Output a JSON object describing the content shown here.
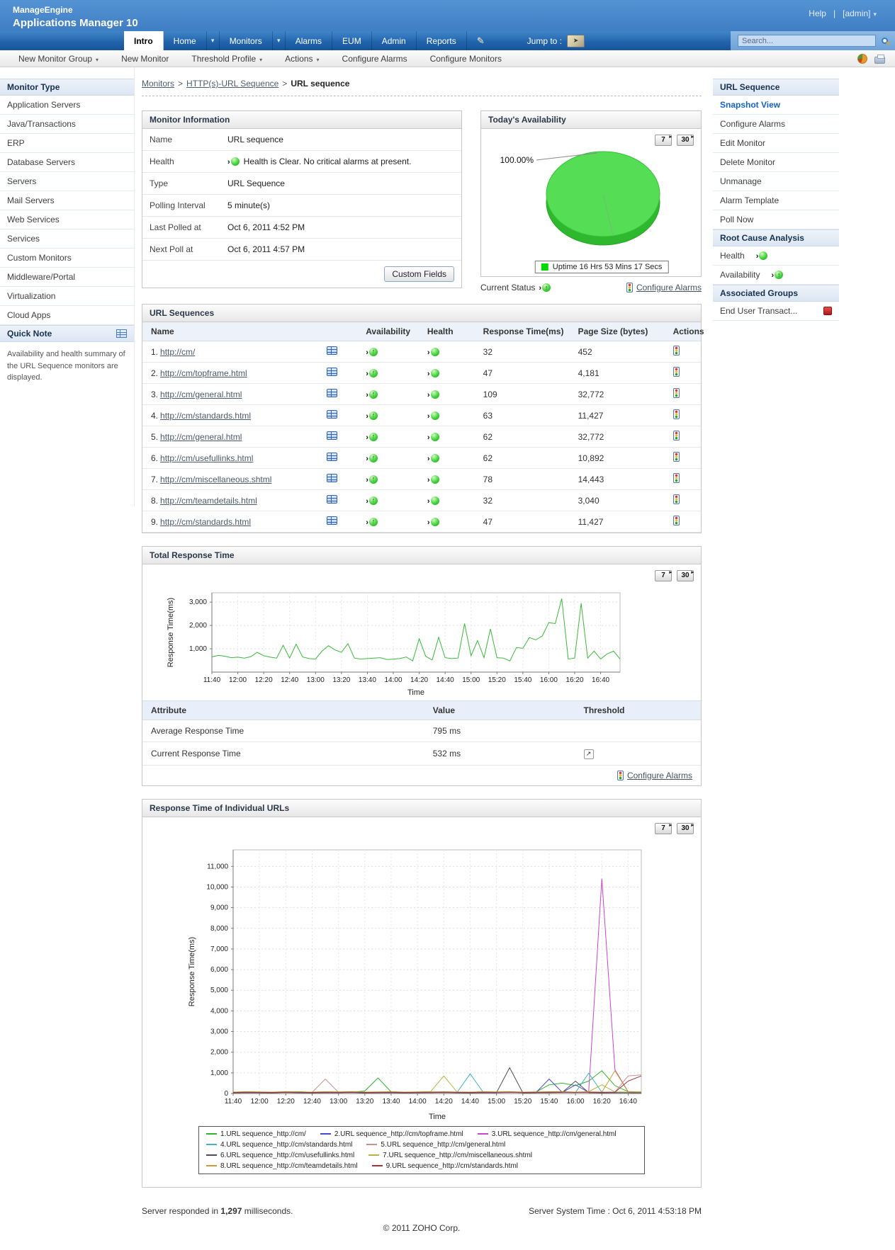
{
  "header": {
    "brand_line1": "ManageEngine",
    "brand_line2": "Applications Manager 10",
    "help_label": "Help",
    "divider": "|",
    "user_label": "[admin]"
  },
  "nav": {
    "tabs": [
      {
        "label": "Intro",
        "state": "active",
        "dropdown": false
      },
      {
        "label": "Home",
        "state": "",
        "dropdown": true
      },
      {
        "label": "Monitors",
        "state": "",
        "dropdown": true
      },
      {
        "label": "Alarms",
        "state": "",
        "dropdown": false
      },
      {
        "label": "EUM",
        "state": "",
        "dropdown": false
      },
      {
        "label": "Admin",
        "state": "",
        "dropdown": false
      },
      {
        "label": "Reports",
        "state": "",
        "dropdown": false
      }
    ],
    "jump_label": "Jump to :",
    "search_placeholder": "Search..."
  },
  "subnav": {
    "items": [
      {
        "label": "New Monitor Group",
        "dropdown": true
      },
      {
        "label": "New Monitor",
        "dropdown": false
      },
      {
        "label": "Threshold Profile",
        "dropdown": true
      },
      {
        "label": "Actions",
        "dropdown": true
      },
      {
        "label": "Configure Alarms",
        "dropdown": false
      },
      {
        "label": "Configure Monitors",
        "dropdown": false
      }
    ]
  },
  "sidebar": {
    "title": "Monitor Type",
    "items": [
      "Application Servers",
      "Java/Transactions",
      "ERP",
      "Database Servers",
      "Servers",
      "Mail Servers",
      "Web Services",
      "Services",
      "Custom Monitors",
      "Middleware/Portal",
      "Virtualization",
      "Cloud Apps"
    ],
    "quick_note_title": "Quick Note",
    "quick_note_text": "Availability and health summary of the URL Sequence monitors are displayed."
  },
  "breadcrumb": {
    "link1": "Monitors",
    "link2": "HTTP(s)-URL Sequence",
    "current": "URL sequence",
    "separator": ">"
  },
  "monitor_info": {
    "title": "Monitor Information",
    "rows": [
      {
        "label": "Name",
        "value": "URL sequence",
        "has_icon": false
      },
      {
        "label": "Health",
        "value": "Health is Clear. No critical alarms at present.",
        "has_icon": true
      },
      {
        "label": "Type",
        "value": "URL Sequence",
        "has_icon": false
      },
      {
        "label": "Polling Interval",
        "value": "5 minute(s)",
        "has_icon": false
      },
      {
        "label": "Last Polled at",
        "value": "Oct 6, 2011 4:52 PM",
        "has_icon": false
      },
      {
        "label": "Next Poll at",
        "value": "Oct 6, 2011 4:57 PM",
        "has_icon": false
      }
    ],
    "custom_fields_button": "Custom Fields"
  },
  "availability": {
    "title": "Today's Availability",
    "btn7": "7",
    "btn30": "30",
    "percent_label": "100.00%",
    "legend": "Uptime 16 Hrs 53 Mins 17 Secs",
    "current_status_label": "Current Status",
    "configure_alarms_label": "Configure Alarms",
    "pie_top_color": "#55dd55",
    "pie_side_color": "#2eb82e",
    "legend_swatch_color": "#00d800"
  },
  "url_sequences": {
    "title": "URL Sequences",
    "columns": {
      "name": "Name",
      "availability": "Availability",
      "health": "Health",
      "response_time": "Response Time(ms)",
      "page_size": "Page Size (bytes)",
      "actions": "Actions"
    },
    "rows": [
      {
        "num": "1.",
        "name": "http://cm/",
        "response_time": "32",
        "page_size": "452"
      },
      {
        "num": "2.",
        "name": "http://cm/topframe.html",
        "response_time": "47",
        "page_size": "4,181"
      },
      {
        "num": "3.",
        "name": "http://cm/general.html",
        "response_time": "109",
        "page_size": "32,772"
      },
      {
        "num": "4.",
        "name": "http://cm/standards.html",
        "response_time": "63",
        "page_size": "11,427"
      },
      {
        "num": "5.",
        "name": "http://cm/general.html",
        "response_time": "62",
        "page_size": "32,772"
      },
      {
        "num": "6.",
        "name": "http://cm/usefullinks.html",
        "response_time": "62",
        "page_size": "10,892"
      },
      {
        "num": "7.",
        "name": "http://cm/miscellaneous.shtml",
        "response_time": "78",
        "page_size": "14,443"
      },
      {
        "num": "8.",
        "name": "http://cm/teamdetails.html",
        "response_time": "32",
        "page_size": "3,040"
      },
      {
        "num": "9.",
        "name": "http://cm/standards.html",
        "response_time": "47",
        "page_size": "11,427"
      }
    ]
  },
  "total_response_time": {
    "title": "Total Response Time",
    "btn7": "7",
    "btn30": "30"
  },
  "attributes": {
    "columns": {
      "attribute": "Attribute",
      "value": "Value",
      "threshold": "Threshold"
    },
    "rows": [
      {
        "label": "Average Response Time",
        "value": "795 ms",
        "threshold_icon": false
      },
      {
        "label": "Current Response Time",
        "value": "532 ms",
        "threshold_icon": true
      }
    ],
    "configure_alarms_label": "Configure Alarms"
  },
  "individual_urls": {
    "title": "Response Time of Individual URLs",
    "btn7": "7",
    "btn30": "30"
  },
  "right_panel": {
    "section1_title": "URL Sequence",
    "section1_items": [
      {
        "label": "Snapshot View",
        "state": "active"
      },
      {
        "label": "Configure Alarms",
        "state": ""
      },
      {
        "label": "Edit Monitor",
        "state": ""
      },
      {
        "label": "Delete Monitor",
        "state": ""
      },
      {
        "label": "Unmanage",
        "state": ""
      },
      {
        "label": "Alarm Template",
        "state": ""
      },
      {
        "label": "Poll Now",
        "state": ""
      }
    ],
    "section2_title": "Root Cause Analysis",
    "section2_items": [
      {
        "label": "Health",
        "icon": "health"
      },
      {
        "label": "Availability",
        "icon": "availability"
      }
    ],
    "section3_title": "Associated Groups",
    "section3_items": [
      {
        "label": "End User Transact...",
        "icon": "eum"
      }
    ]
  },
  "footer": {
    "left_prefix": "Server responded in",
    "left_bold": "1,297",
    "left_suffix": "milliseconds.",
    "right": "Server System Time : Oct 6, 2011 4:53:18 PM",
    "copyright": "© 2011 ZOHO Corp."
  },
  "chart_data": [
    {
      "type": "line",
      "title": "Total Response Time",
      "xlabel": "Time",
      "ylabel": "Response Time(ms)",
      "ylim": [
        0,
        3400
      ],
      "yticks": [
        1000,
        2000,
        3000
      ],
      "xticks": [
        "11:40",
        "12:00",
        "12:20",
        "12:40",
        "13:00",
        "13:20",
        "13:40",
        "14:00",
        "14:20",
        "14:40",
        "15:00",
        "15:20",
        "15:40",
        "16:00",
        "16:20",
        "16:40"
      ],
      "xtick_step": 4,
      "grid": true,
      "legend_position": "none",
      "series": [
        {
          "name": "Total Response Time",
          "color": "#3cb83c",
          "values": [
            650,
            720,
            680,
            620,
            640,
            600,
            660,
            850,
            700,
            640,
            600,
            1150,
            600,
            1200,
            650,
            580,
            560,
            900,
            1130,
            950,
            850,
            1220,
            600,
            560,
            580,
            600,
            620,
            540,
            560,
            580,
            650,
            480,
            1430,
            680,
            520,
            1490,
            620,
            580,
            600,
            2080,
            700,
            1350,
            620,
            1850,
            620,
            600,
            480,
            1050,
            1020,
            1480,
            1380,
            1550,
            2120,
            2080,
            3150,
            560,
            600,
            2950,
            600,
            900,
            560,
            780,
            900,
            560
          ]
        }
      ]
    },
    {
      "type": "line",
      "title": "Response Time of Individual URLs",
      "xlabel": "Time",
      "ylabel": "Response Time(ms)",
      "ylim": [
        0,
        11800
      ],
      "yticks": [
        0,
        1000,
        2000,
        3000,
        4000,
        5000,
        6000,
        7000,
        8000,
        9000,
        10000,
        11000
      ],
      "xticks": [
        "11:40",
        "12:00",
        "12:20",
        "12:40",
        "13:00",
        "13:20",
        "13:40",
        "14:00",
        "14:20",
        "14:40",
        "15:00",
        "15:20",
        "15:40",
        "16:00",
        "16:20",
        "16:40"
      ],
      "xtick_step": 2,
      "grid": true,
      "legend_position": "bottom",
      "series": [
        {
          "name": "1.URL sequence_http://cm/",
          "color": "#2db32d",
          "values": [
            60,
            80,
            50,
            70,
            60,
            90,
            55,
            65,
            70,
            60,
            120,
            750,
            80,
            60,
            70,
            65,
            80,
            70,
            60,
            75,
            65,
            70,
            60,
            80,
            420,
            500,
            380,
            600,
            1100,
            380,
            90,
            60
          ]
        },
        {
          "name": "2.URL sequence_http://cm/topframe.html",
          "color": "#4848cc",
          "values": [
            40,
            50,
            45,
            40,
            55,
            45,
            40,
            50,
            45,
            55,
            40,
            45,
            50,
            40,
            45,
            50,
            55,
            45,
            40,
            50,
            45,
            55,
            40,
            45,
            700,
            50,
            420,
            60,
            45,
            50,
            40,
            55
          ]
        },
        {
          "name": "3.URL sequence_http://cm/general.html",
          "color": "#cc44cc",
          "values": [
            50,
            60,
            55,
            50,
            65,
            55,
            60,
            50,
            55,
            60,
            50,
            55,
            60,
            55,
            50,
            60,
            55,
            50,
            60,
            55,
            50,
            60,
            55,
            50,
            60,
            55,
            65,
            60,
            10400,
            1150,
            90,
            60
          ]
        },
        {
          "name": "4.URL sequence_http://cm/standards.html",
          "color": "#3fb4c4",
          "values": [
            45,
            55,
            50,
            45,
            60,
            50,
            45,
            55,
            50,
            60,
            45,
            50,
            55,
            45,
            50,
            55,
            60,
            50,
            950,
            55,
            50,
            60,
            45,
            50,
            55,
            60,
            45,
            980,
            60,
            70,
            50,
            45
          ]
        },
        {
          "name": "5.URL sequence_http://cm/general.html",
          "color": "#c98f8f",
          "values": [
            55,
            65,
            60,
            55,
            60,
            65,
            55,
            700,
            60,
            70,
            55,
            60,
            65,
            55,
            60,
            65,
            70,
            60,
            55,
            65,
            60,
            70,
            55,
            60,
            65,
            70,
            55,
            65,
            60,
            70,
            850,
            900
          ]
        },
        {
          "name": "6.URL sequence_http://cm/usefullinks.html",
          "color": "#4d4d5a",
          "values": [
            35,
            45,
            40,
            35,
            50,
            40,
            35,
            45,
            40,
            50,
            35,
            40,
            45,
            35,
            40,
            45,
            50,
            40,
            35,
            45,
            40,
            1250,
            35,
            40,
            45,
            50,
            600,
            40,
            35,
            45,
            40,
            35
          ]
        },
        {
          "name": "7.URL sequence_http://cm/miscellaneous.shtml",
          "color": "#b4b440",
          "values": [
            70,
            85,
            75,
            70,
            90,
            75,
            70,
            85,
            75,
            90,
            70,
            75,
            85,
            70,
            75,
            90,
            850,
            75,
            70,
            85,
            75,
            90,
            70,
            75,
            85,
            90,
            70,
            85,
            420,
            75,
            70,
            85
          ]
        },
        {
          "name": "8.URL sequence_http://cm/teamdetails.html",
          "color": "#cc9a2e",
          "values": [
            65,
            75,
            70,
            65,
            80,
            70,
            65,
            75,
            70,
            80,
            65,
            70,
            75,
            65,
            70,
            75,
            80,
            70,
            65,
            75,
            70,
            80,
            65,
            70,
            75,
            80,
            65,
            75,
            70,
            1100,
            80,
            65
          ]
        },
        {
          "name": "9.URL sequence_http://cm/standards.html",
          "color": "#a83232",
          "values": [
            50,
            60,
            55,
            50,
            65,
            55,
            50,
            60,
            55,
            65,
            50,
            55,
            60,
            50,
            55,
            60,
            65,
            55,
            50,
            60,
            55,
            65,
            50,
            55,
            60,
            65,
            50,
            60,
            55,
            65,
            600,
            850
          ]
        }
      ]
    }
  ]
}
